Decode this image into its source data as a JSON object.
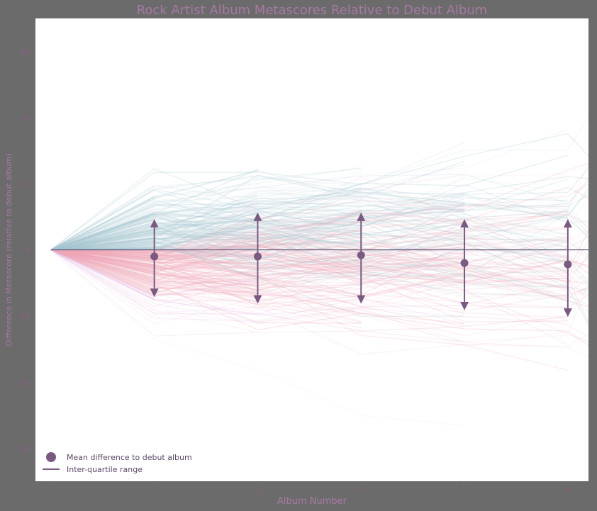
{
  "chart_data": {
    "type": "line",
    "title": "Rock Artist Album Metascores Relative to Debut Album",
    "xlabel": "Album Number",
    "ylabel": "Difference in Metascore (relative to debut album)",
    "x": [
      1,
      2,
      3,
      4,
      5,
      6
    ],
    "xlim": [
      0.85,
      6.2
    ],
    "ylim": [
      -35,
      35
    ],
    "grid": false,
    "legend_position": "bottom-left",
    "summary": {
      "name": "Mean difference to debut album",
      "mean": [
        0,
        -1,
        -1,
        -0.8,
        -2,
        -2.2
      ],
      "q1": [
        0,
        -6.5,
        -7.5,
        -7.5,
        -8.5,
        -9.5
      ],
      "q3": [
        0,
        4,
        5,
        5,
        4,
        4
      ]
    },
    "background_lines": {
      "higher_color": "#a8c8d2",
      "lower_color_near": "#f0a9b9",
      "lower_color_far": "#e8bde3"
    },
    "legend": [
      {
        "label": "Mean difference to debut album",
        "marker": "dot"
      },
      {
        "label": "Inter-quartile range",
        "marker": "line"
      }
    ],
    "colors": {
      "summary": "#7a5a80",
      "zero_line": "#555577",
      "plot_bg": "#ffffff",
      "page_bg": "#6b6b6b"
    }
  }
}
